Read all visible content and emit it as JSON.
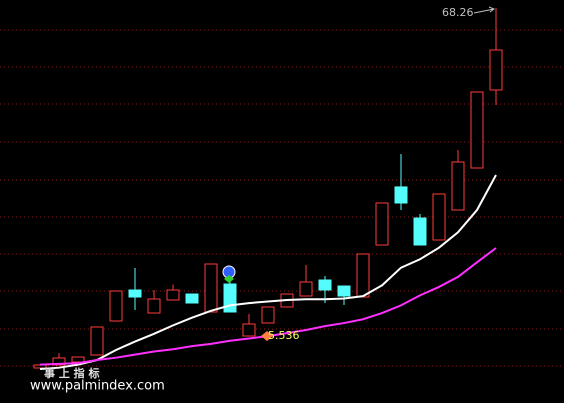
{
  "chart_data": {
    "type": "candlestick",
    "background": "#000000",
    "up_color": "#ff3b3b",
    "down_color": "#54fcfc",
    "open": [
      21.46,
      21.85,
      22.24,
      23.15,
      27.57,
      31.6,
      28.61,
      30.3,
      31.08,
      28.74,
      32.38,
      25.62,
      27.31,
      29.39,
      30.82,
      32.9,
      32.12,
      30.69,
      37.45,
      45.0,
      40.96,
      38.1,
      42.0,
      47.46,
      57.6
    ],
    "high": [
      21.85,
      23.4,
      22.89,
      26.79,
      31.47,
      34.46,
      31.6,
      32.3,
      31.08,
      34.98,
      32.9,
      28.5,
      29.39,
      31.08,
      34.85,
      33.42,
      32.12,
      36.28,
      42.91,
      49.28,
      41.5,
      44.08,
      49.8,
      57.34,
      68.26
    ],
    "low": [
      21.46,
      21.85,
      22.24,
      23.15,
      27.57,
      29.0,
      28.61,
      30.3,
      29.91,
      28.74,
      28.74,
      25.62,
      27.31,
      29.39,
      30.82,
      29.91,
      29.65,
      30.69,
      37.45,
      42.0,
      37.45,
      38.1,
      42.0,
      47.46,
      55.65
    ],
    "close": [
      21.85,
      22.76,
      22.89,
      26.79,
      31.47,
      30.69,
      30.43,
      31.6,
      29.91,
      34.98,
      28.74,
      27.18,
      29.39,
      31.08,
      32.64,
      31.6,
      30.82,
      36.28,
      42.91,
      42.91,
      37.45,
      44.08,
      48.24,
      57.34,
      62.8
    ],
    "series": [
      {
        "color": "#ffffff",
        "values": [
          21.33,
          21.5,
          21.9,
          22.5,
          23.8,
          24.9,
          25.9,
          27.0,
          28.0,
          28.9,
          29.6,
          29.9,
          30.1,
          30.3,
          30.4,
          30.4,
          30.5,
          30.8,
          32.2,
          34.5,
          35.6,
          37.1,
          39.1,
          42.0,
          46.55
        ]
      },
      {
        "color": "#ff30ff",
        "values": [
          21.9,
          22.0,
          22.1,
          22.5,
          22.8,
          23.2,
          23.6,
          23.9,
          24.3,
          24.6,
          25.0,
          25.3,
          25.6,
          26.0,
          26.4,
          26.9,
          27.3,
          27.8,
          28.6,
          29.6,
          30.9,
          32.0,
          33.3,
          35.2,
          37.06
        ]
      }
    ],
    "ylim": [
      16.91,
      69.3
    ],
    "annotations": [
      "68.26",
      "5.536",
      "事 上 指 标",
      "www.palmindex.com"
    ]
  }
}
